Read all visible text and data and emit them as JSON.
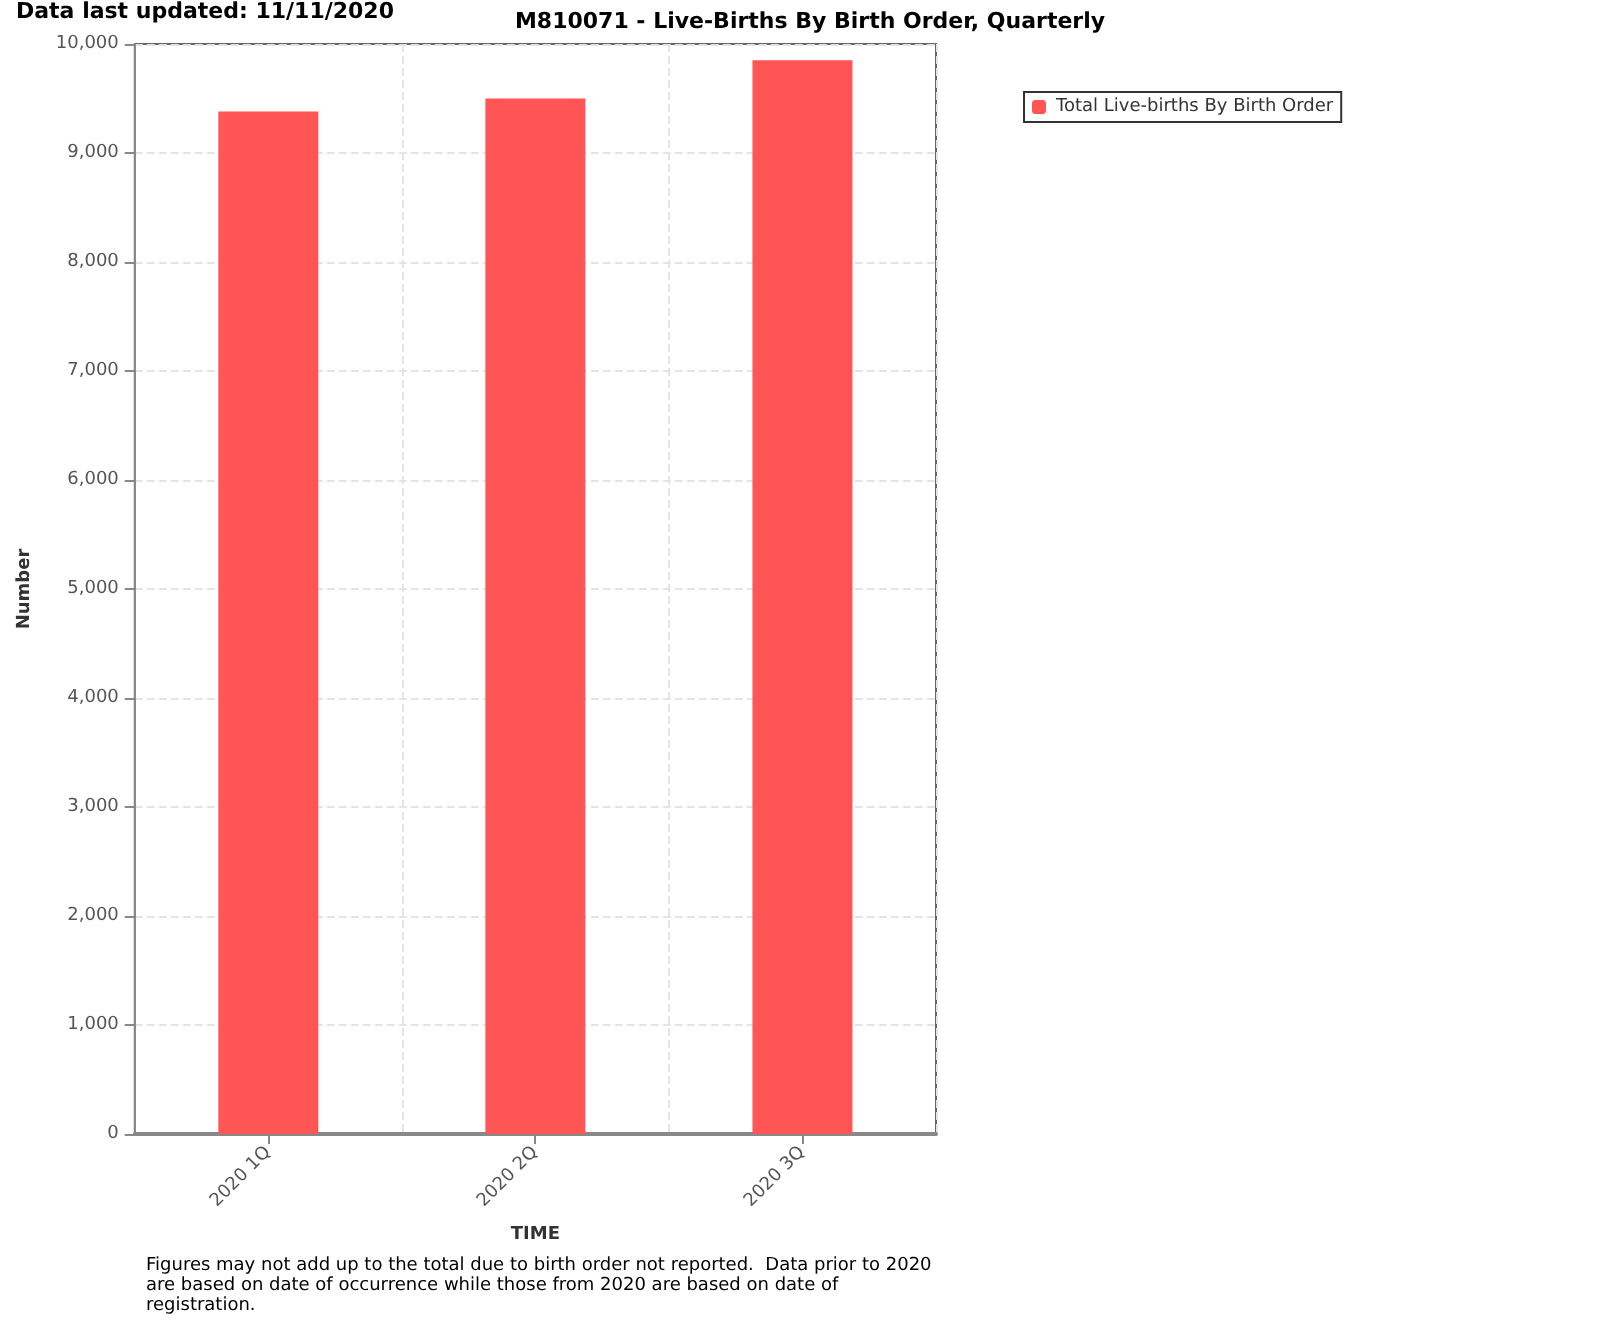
{
  "chart_data": {
    "type": "bar",
    "title": "M810071 - Live-Births By Birth Order, Quarterly",
    "xlabel": "TIME",
    "ylabel": "Number",
    "categories": [
      "2020 1Q",
      "2020 2Q",
      "2020 3Q"
    ],
    "series": [
      {
        "name": "Total Live-births By Birth Order",
        "color": "#ff5555",
        "values": [
          9380,
          9500,
          9850
        ]
      }
    ],
    "ylim": [
      0,
      10000
    ],
    "yticks": [
      {
        "value": 0,
        "label": "0"
      },
      {
        "value": 1000,
        "label": "1,000"
      },
      {
        "value": 2000,
        "label": "2,000"
      },
      {
        "value": 3000,
        "label": "3,000"
      },
      {
        "value": 4000,
        "label": "4,000"
      },
      {
        "value": 5000,
        "label": "5,000"
      },
      {
        "value": 6000,
        "label": "6,000"
      },
      {
        "value": 7000,
        "label": "7,000"
      },
      {
        "value": 8000,
        "label": "8,000"
      },
      {
        "value": 9000,
        "label": "9,000"
      },
      {
        "value": 10000,
        "label": "10,000"
      }
    ],
    "grid": true,
    "legend": "top right",
    "annotations": [
      "Data last updated: 11/11/2020",
      "Figures may not add up to the total due to birth order not reported.  Data prior to 2020 are based on date of occurrence while those from 2020 are based on date of registration."
    ]
  }
}
